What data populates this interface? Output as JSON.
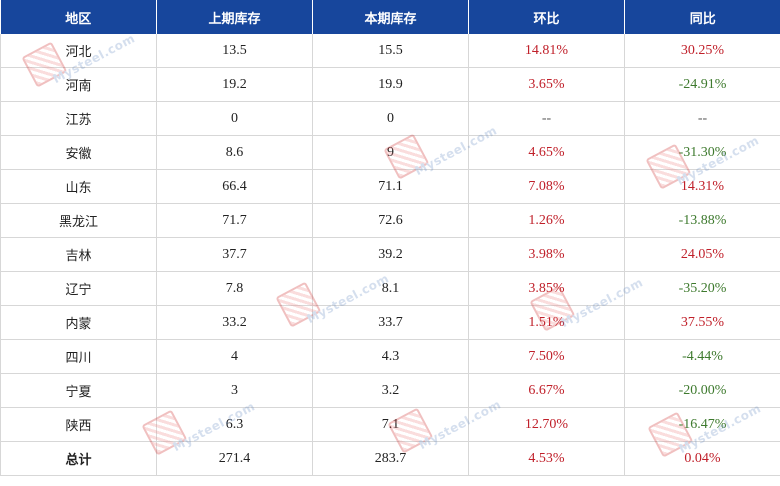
{
  "table": {
    "headers": [
      "地区",
      "上期库存",
      "本期库存",
      "环比",
      "同比"
    ],
    "rows": [
      {
        "region": "河北",
        "prev": "13.5",
        "curr": "15.5",
        "mom": "14.81%",
        "yoy": "30.25%"
      },
      {
        "region": "河南",
        "prev": "19.2",
        "curr": "19.9",
        "mom": "3.65%",
        "yoy": "-24.91%"
      },
      {
        "region": "江苏",
        "prev": "0",
        "curr": "0",
        "mom": "--",
        "yoy": "--"
      },
      {
        "region": "安徽",
        "prev": "8.6",
        "curr": "9",
        "mom": "4.65%",
        "yoy": "-31.30%"
      },
      {
        "region": "山东",
        "prev": "66.4",
        "curr": "71.1",
        "mom": "7.08%",
        "yoy": "14.31%"
      },
      {
        "region": "黑龙江",
        "prev": "71.7",
        "curr": "72.6",
        "mom": "1.26%",
        "yoy": "-13.88%"
      },
      {
        "region": "吉林",
        "prev": "37.7",
        "curr": "39.2",
        "mom": "3.98%",
        "yoy": "24.05%"
      },
      {
        "region": "辽宁",
        "prev": "7.8",
        "curr": "8.1",
        "mom": "3.85%",
        "yoy": "-35.20%"
      },
      {
        "region": "内蒙",
        "prev": "33.2",
        "curr": "33.7",
        "mom": "1.51%",
        "yoy": "37.55%"
      },
      {
        "region": "四川",
        "prev": "4",
        "curr": "4.3",
        "mom": "7.50%",
        "yoy": "-4.44%"
      },
      {
        "region": "宁夏",
        "prev": "3",
        "curr": "3.2",
        "mom": "6.67%",
        "yoy": "-20.00%"
      },
      {
        "region": "陕西",
        "prev": "6.3",
        "curr": "7.1",
        "mom": "12.70%",
        "yoy": "-16.47%"
      },
      {
        "region": "总计",
        "prev": "271.4",
        "curr": "283.7",
        "mom": "4.53%",
        "yoy": "0.04%"
      }
    ]
  },
  "watermark": {
    "text": "Mysteel.com"
  },
  "colors": {
    "header_bg": "#17469c",
    "header_text": "#ffffff",
    "positive": "#c0202a",
    "negative": "#3e7a2e",
    "border": "#d7d7d7"
  }
}
